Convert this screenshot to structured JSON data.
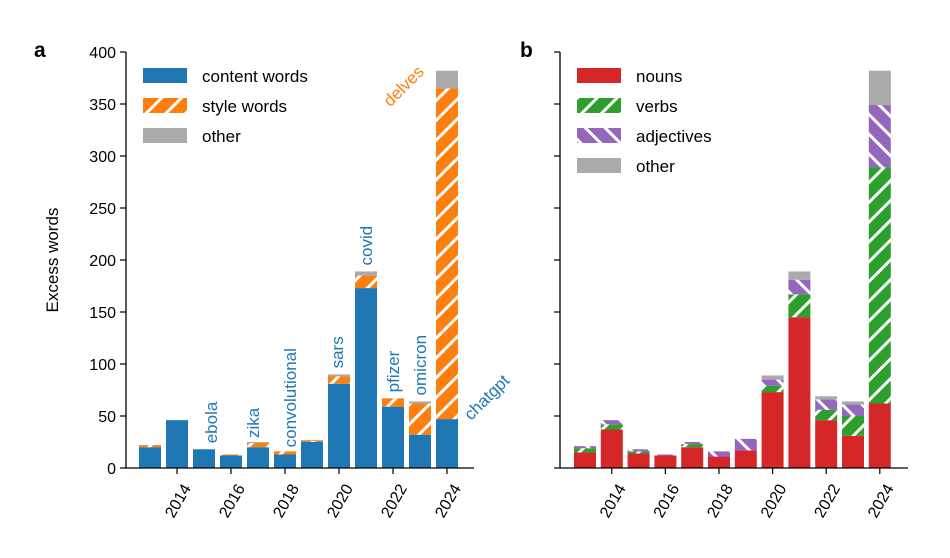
{
  "chart_data": [
    {
      "type": "bar",
      "stacked": true,
      "panel_label": "a",
      "ylabel": "Excess words",
      "ylim": [
        0,
        400
      ],
      "yticks": [
        0,
        50,
        100,
        150,
        200,
        250,
        300,
        350,
        400
      ],
      "x": [
        2013,
        2014,
        2015,
        2016,
        2017,
        2018,
        2019,
        2020,
        2021,
        2022,
        2023,
        2024
      ],
      "xticks": [
        2014,
        2016,
        2018,
        2020,
        2022,
        2024
      ],
      "legend_position": "top-left",
      "series": [
        {
          "name": "content words",
          "color": "#1f77b4",
          "pattern": "solid",
          "values": [
            20,
            46,
            18,
            12,
            20,
            13,
            25,
            81,
            173,
            59,
            32,
            47
          ]
        },
        {
          "name": "style words",
          "color": "#ff7f0e",
          "pattern": "hatch",
          "values": [
            2,
            0,
            0,
            1,
            4,
            3,
            1,
            7,
            12,
            8,
            30,
            318
          ]
        },
        {
          "name": "other",
          "color": "#aaaaaa",
          "pattern": "solid",
          "values": [
            0,
            0,
            0,
            0,
            1,
            0,
            1,
            2,
            4,
            0,
            2,
            17
          ]
        }
      ],
      "annotations": [
        {
          "text": "ebola",
          "x": 2015,
          "color": "#1f77b4"
        },
        {
          "text": "zika",
          "x": 2017,
          "color": "#1f77b4"
        },
        {
          "text": "convolutional",
          "x": 2018,
          "color": "#1f77b4"
        },
        {
          "text": "sars",
          "x": 2020,
          "color": "#1f77b4"
        },
        {
          "text": "covid",
          "x": 2021,
          "color": "#1f77b4"
        },
        {
          "text": "pfizer",
          "x": 2022,
          "color": "#1f77b4"
        },
        {
          "text": "omicron",
          "x": 2023,
          "color": "#1f77b4"
        },
        {
          "text": "delves",
          "x": 2024,
          "color": "#ff7f0e"
        },
        {
          "text": "chatgpt",
          "x": 2024,
          "color": "#1f77b4"
        }
      ]
    },
    {
      "type": "bar",
      "stacked": true,
      "panel_label": "b",
      "ylim": [
        0,
        400
      ],
      "yticks": [
        0,
        50,
        100,
        150,
        200,
        250,
        300,
        350,
        400
      ],
      "x": [
        2013,
        2014,
        2015,
        2016,
        2017,
        2018,
        2019,
        2020,
        2021,
        2022,
        2023,
        2024
      ],
      "xticks": [
        2014,
        2016,
        2018,
        2020,
        2022,
        2024
      ],
      "legend_position": "top-left",
      "series": [
        {
          "name": "nouns",
          "color": "#d62728",
          "pattern": "solid",
          "values": [
            15,
            37,
            14,
            12,
            20,
            11,
            17,
            73,
            145,
            46,
            31,
            62
          ]
        },
        {
          "name": "verbs",
          "color": "#2ca02c",
          "pattern": "hatch",
          "values": [
            4,
            5,
            2,
            0,
            3,
            0,
            0,
            6,
            22,
            10,
            19,
            227
          ]
        },
        {
          "name": "adjectives",
          "color": "#9467bd",
          "pattern": "hatch-rev",
          "values": [
            2,
            4,
            2,
            1,
            2,
            5,
            11,
            6,
            14,
            10,
            11,
            60
          ]
        },
        {
          "name": "other",
          "color": "#aaaaaa",
          "pattern": "solid",
          "values": [
            0,
            0,
            0,
            0,
            0,
            0,
            0,
            4,
            8,
            3,
            3,
            33
          ]
        }
      ]
    }
  ]
}
